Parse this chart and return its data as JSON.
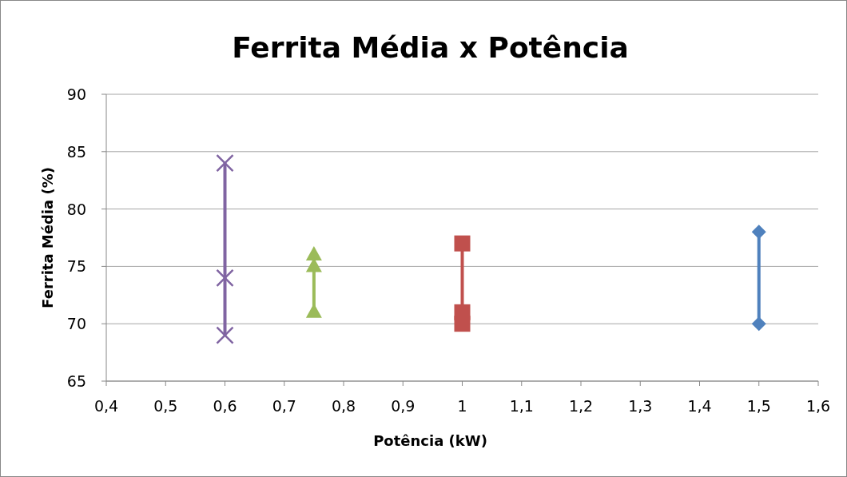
{
  "chart_data": {
    "type": "line",
    "title": "Ferrita Média x Potência",
    "xlabel": "Potência (kW)",
    "ylabel": "Ferrita Média (%)",
    "xlim": [
      0.4,
      1.6
    ],
    "xticks": [
      {
        "value": 0.4,
        "label": "0,4"
      },
      {
        "value": 0.5,
        "label": "0,5"
      },
      {
        "value": 0.6,
        "label": "0,6"
      },
      {
        "value": 0.7,
        "label": "0,7"
      },
      {
        "value": 0.8,
        "label": "0,8"
      },
      {
        "value": 0.9,
        "label": "0,9"
      },
      1,
      {
        "value": 1.1,
        "label": "1,1"
      },
      {
        "value": 1.2,
        "label": "1,2"
      },
      {
        "value": 1.3,
        "label": "1,3"
      },
      {
        "value": 1.4,
        "label": "1,4"
      },
      {
        "value": 1.5,
        "label": "1,5"
      },
      {
        "value": 1.6,
        "label": "1,6"
      }
    ],
    "ylim": [
      65,
      90
    ],
    "yticks": [
      65,
      70,
      75,
      80,
      85,
      90
    ],
    "grid": "y",
    "line_style": "solid",
    "series": [
      {
        "color": "#4f81bd",
        "marker": "diamond",
        "x": [
          1.5,
          1.5
        ],
        "values": [
          78,
          70
        ]
      },
      {
        "color": "#c0504d",
        "marker": "square",
        "x": [
          1,
          1,
          1
        ],
        "values": [
          77,
          71,
          70
        ]
      },
      {
        "color": "#9bbb59",
        "marker": "triangle",
        "x": [
          0.75,
          0.75,
          0.75
        ],
        "values": [
          76,
          75,
          71
        ]
      },
      {
        "color": "#8064a2",
        "marker": "cross",
        "x": [
          0.6,
          0.6,
          0.6
        ],
        "values": [
          84,
          74,
          69
        ]
      }
    ]
  }
}
